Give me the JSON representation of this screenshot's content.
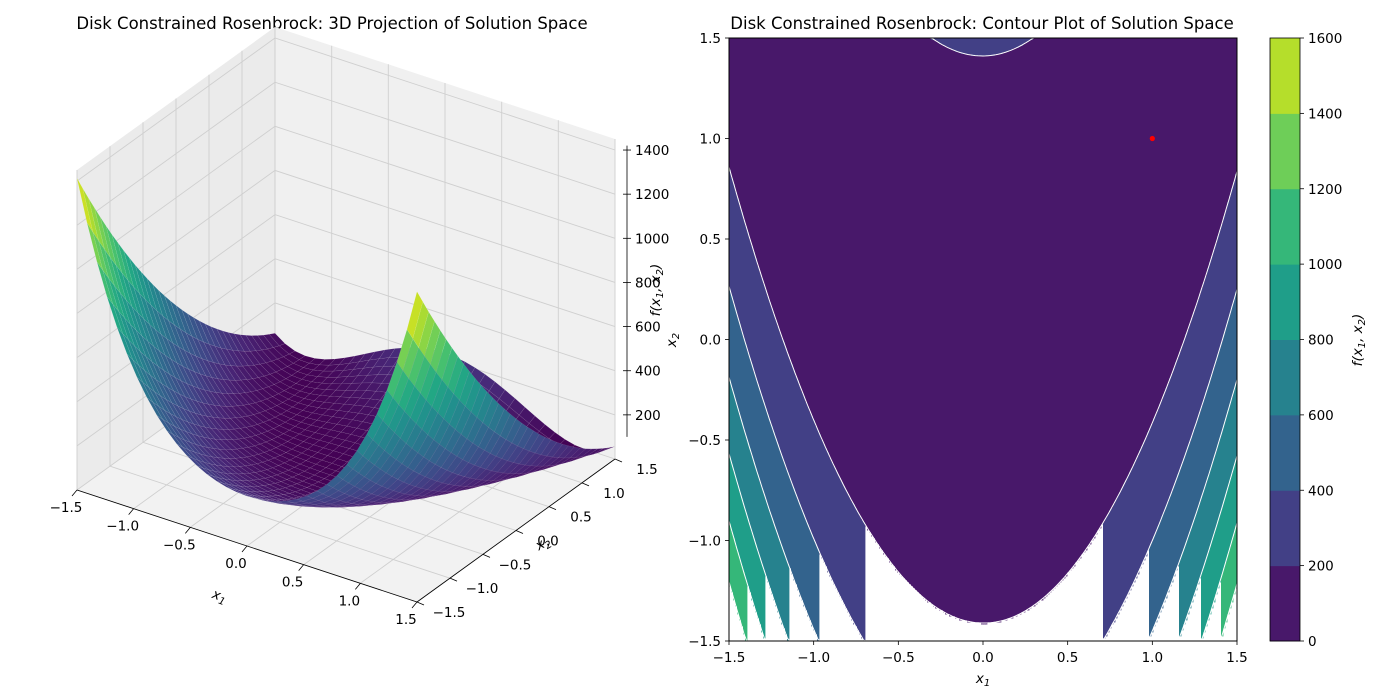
{
  "chart_data": [
    {
      "type": "surface3d",
      "title": "Disk Constrained Rosenbrock: 3D Projection of Solution Space",
      "xlabel": "x1",
      "ylabel": "x2",
      "zlabel": "f(x1, x2)",
      "function": "rosenbrock",
      "xlim": [
        -1.5,
        1.5
      ],
      "ylim": [
        -1.5,
        1.5
      ],
      "zlim": [
        0,
        1450
      ],
      "xticks": [
        "−1.5",
        "−1.0",
        "−0.5",
        "0.0",
        "0.5",
        "1.0",
        "1.5"
      ],
      "yticks": [
        "−1.5",
        "−1.0",
        "−0.5",
        "0.0",
        "0.5",
        "1.0",
        "1.5"
      ],
      "zticks": [
        "200",
        "400",
        "600",
        "800",
        "1000",
        "1200",
        "1400"
      ],
      "colormap": "viridis",
      "grid": true
    },
    {
      "type": "contour",
      "title": "Disk Constrained Rosenbrock: Contour Plot of Solution Space",
      "xlabel": "x1",
      "ylabel": "x2",
      "function": "rosenbrock",
      "xlim": [
        -1.5,
        1.5
      ],
      "ylim": [
        -1.5,
        1.5
      ],
      "xticks": [
        "−1.5",
        "−1.0",
        "−0.5",
        "0.0",
        "0.5",
        "1.0",
        "1.5"
      ],
      "yticks": [
        "−1.5",
        "−1.0",
        "−0.5",
        "0.0",
        "0.5",
        "1.0",
        "1.5"
      ],
      "levels": [
        0,
        200,
        400,
        600,
        800,
        1000,
        1200,
        1400,
        1600
      ],
      "level_colors": [
        "#48186a",
        "#424086",
        "#33638d",
        "#26828e",
        "#1f9e89",
        "#35b779",
        "#6ece58",
        "#b5de2b",
        "#dde318"
      ],
      "optimum_marker": {
        "x": 1.0,
        "y": 1.0,
        "color": "#ff0000"
      },
      "colorbar": {
        "label": "f(x1, x2)",
        "ticks": [
          "0",
          "200",
          "400",
          "600",
          "800",
          "1000",
          "1200",
          "1400",
          "1600"
        ]
      }
    }
  ]
}
